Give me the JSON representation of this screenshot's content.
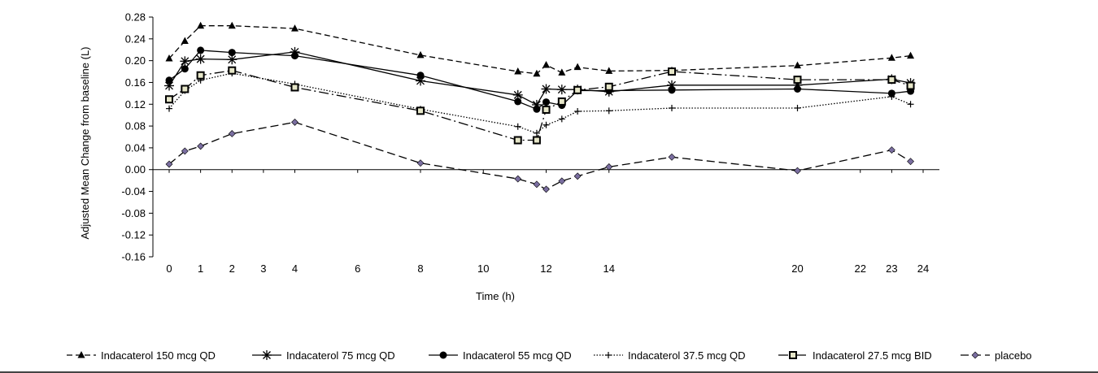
{
  "chart_data": {
    "type": "line",
    "xlabel": "Time (h)",
    "ylabel": "Adjusted Mean Change from baseline (L)",
    "ylim": [
      -0.16,
      0.28
    ],
    "yticks": [
      "0.28",
      "0.24",
      "0.20",
      "0.16",
      "0.12",
      "0.08",
      "0.04",
      "0.00",
      "-0.04",
      "-0.08",
      "-0.12",
      "-0.16"
    ],
    "xticks": [
      "0",
      "1",
      "2",
      "3",
      "4",
      "6",
      "8",
      "10",
      "12",
      "14",
      "20",
      "22",
      "23",
      "24"
    ],
    "xlim": [
      -0.5,
      24.5
    ],
    "grid": false,
    "legend_position": "bottom",
    "series": [
      {
        "name": "Indacaterol 150 mcg QD",
        "marker": "triangle",
        "dash": "7,4",
        "color": "#000000",
        "x": [
          0,
          0.5,
          1,
          2,
          4,
          8,
          11.1,
          11.7,
          12,
          12.5,
          13,
          14,
          16,
          20,
          23,
          23.6
        ],
        "y": [
          0.204,
          0.236,
          0.264,
          0.264,
          0.259,
          0.21,
          0.18,
          0.176,
          0.192,
          0.178,
          0.188,
          0.181,
          0.182,
          0.191,
          0.205,
          0.209
        ]
      },
      {
        "name": "Indacaterol 75 mcg QD",
        "marker": "star",
        "dash": "",
        "color": "#000000",
        "x": [
          0,
          0.5,
          1,
          2,
          4,
          8,
          11.1,
          11.7,
          12,
          12.5,
          13,
          14,
          16,
          20,
          23,
          23.6
        ],
        "y": [
          0.154,
          0.199,
          0.203,
          0.202,
          0.216,
          0.163,
          0.137,
          0.119,
          0.148,
          0.147,
          0.147,
          0.143,
          0.155,
          0.155,
          0.166,
          0.159
        ]
      },
      {
        "name": "Indacaterol 55 mcg QD",
        "marker": "circle",
        "dash": "",
        "color": "#000000",
        "x": [
          0,
          0.5,
          1,
          2,
          4,
          8,
          11.1,
          11.7,
          12,
          12.5,
          13,
          14,
          16,
          20,
          23,
          23.6
        ],
        "y": [
          0.164,
          0.185,
          0.219,
          0.215,
          0.209,
          0.173,
          0.125,
          0.111,
          0.124,
          0.118,
          0.145,
          0.145,
          0.146,
          0.148,
          0.14,
          0.144
        ]
      },
      {
        "name": "Indacaterol 37.5 mcg QD",
        "marker": "plus",
        "dash": "1.5,2",
        "color": "#000000",
        "x": [
          0,
          0.5,
          1,
          2,
          4,
          8,
          11.1,
          11.7,
          12,
          12.5,
          13,
          14,
          16,
          20,
          23,
          23.6
        ],
        "y": [
          0.112,
          0.145,
          0.164,
          0.177,
          0.157,
          0.111,
          0.079,
          0.067,
          0.082,
          0.093,
          0.107,
          0.108,
          0.113,
          0.113,
          0.134,
          0.12
        ]
      },
      {
        "name": "Indacaterol 27.5 mcg BID",
        "marker": "square",
        "dash": "12,4,2,4",
        "color": "#000000",
        "x": [
          0,
          0.5,
          1,
          2,
          4,
          8,
          11.1,
          11.7,
          12,
          12.5,
          13,
          14,
          16,
          20,
          23,
          23.6
        ],
        "y": [
          0.129,
          0.148,
          0.173,
          0.182,
          0.151,
          0.108,
          0.054,
          0.054,
          0.11,
          0.125,
          0.146,
          0.152,
          0.18,
          0.165,
          0.165,
          0.154
        ]
      },
      {
        "name": "placebo",
        "marker": "diamond",
        "dash": "10,5",
        "color": "#000000",
        "x": [
          0,
          0.5,
          1,
          2,
          4,
          8,
          11.1,
          11.7,
          12,
          12.5,
          13,
          14,
          16,
          20,
          23,
          23.6
        ],
        "y": [
          0.01,
          0.034,
          0.043,
          0.066,
          0.087,
          0.012,
          -0.017,
          -0.027,
          -0.036,
          -0.021,
          -0.012,
          0.005,
          0.023,
          -0.002,
          0.036,
          0.015
        ]
      }
    ]
  }
}
